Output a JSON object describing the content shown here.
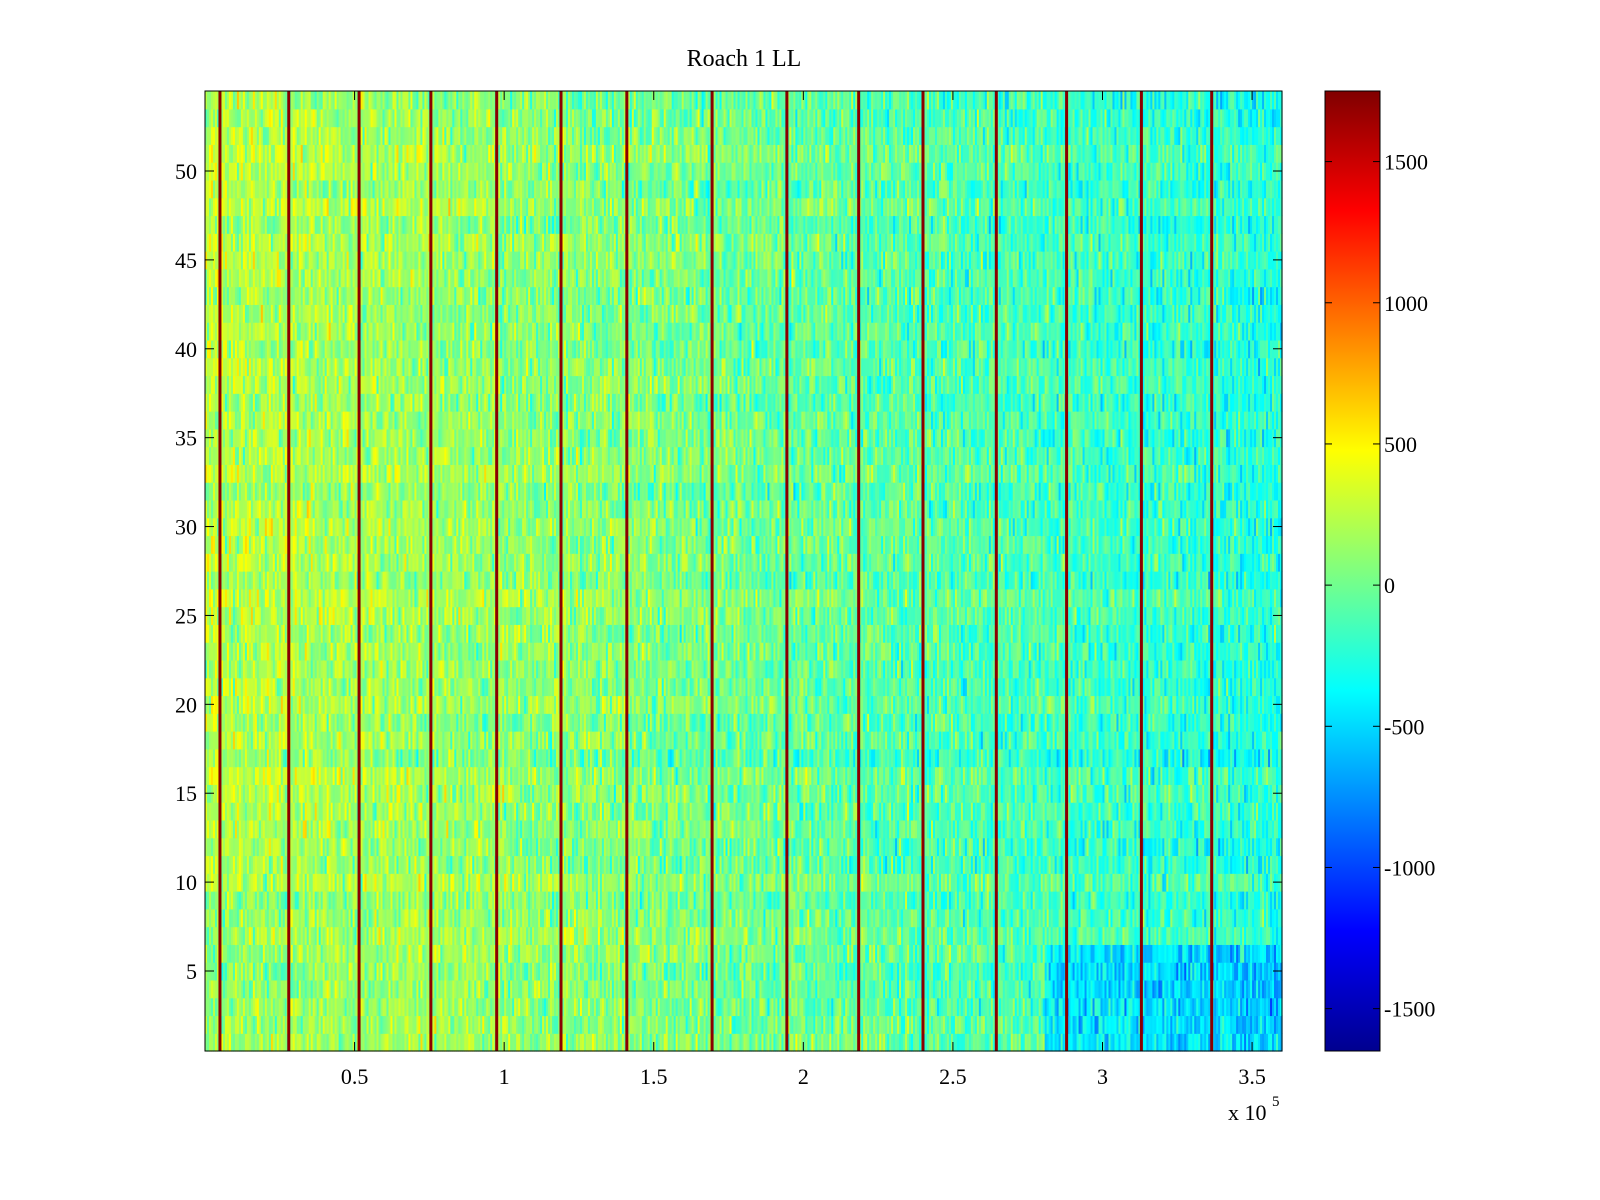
{
  "chart_data": {
    "type": "heatmap",
    "title": "Roach 1 LL",
    "xlabel": "",
    "ylabel": "",
    "x_multiplier": "x 10",
    "x_multiplier_exponent": "5",
    "xlim": [
      0,
      360000
    ],
    "ylim": [
      0.5,
      54.5
    ],
    "rows": 54,
    "x_ticks": [
      50000,
      100000,
      150000,
      200000,
      250000,
      300000,
      350000
    ],
    "x_tick_labels": [
      "0.5",
      "1",
      "1.5",
      "2",
      "2.5",
      "3",
      "3.5"
    ],
    "y_ticks": [
      5,
      10,
      15,
      20,
      25,
      30,
      35,
      40,
      45,
      50
    ],
    "y_tick_labels": [
      "5",
      "10",
      "15",
      "20",
      "25",
      "30",
      "35",
      "40",
      "45",
      "50"
    ],
    "colorbar": {
      "colormap": "jet",
      "clim": [
        -1650,
        1750
      ],
      "ticks": [
        1500,
        1000,
        500,
        0,
        -500,
        -1000,
        -1500
      ],
      "tick_labels": [
        "1500",
        "1000",
        "500",
        "0",
        "-500",
        "-1000",
        "-1500"
      ]
    },
    "vertical_spike_lines_x": [
      5000,
      28000,
      51500,
      75500,
      97500,
      119000,
      141000,
      169500,
      194500,
      218500,
      240000,
      264500,
      288000,
      313000,
      336500
    ],
    "value_trend": {
      "description": "values mostly between -700 and 600; warmer (~250) at left, cooler (~-250) at right, coolest at bottom-right rows",
      "left_mean": 250,
      "right_mean": -250
    }
  }
}
